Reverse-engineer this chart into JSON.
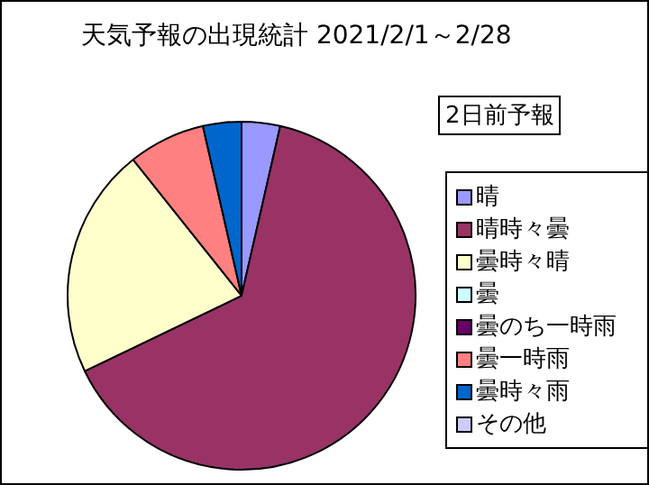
{
  "chart_data": {
    "type": "pie",
    "title": "天気予報の出現統計 2021/2/1～2/28",
    "legend_title": "2日前予報",
    "legend": "right",
    "categories": [
      "晴",
      "晴時々曇",
      "曇時々晴",
      "曇",
      "曇のち一時雨",
      "曇一時雨",
      "曇時々雨",
      "その他"
    ],
    "values": [
      3.57,
      64.29,
      21.43,
      0,
      0,
      7.14,
      3.57,
      0
    ],
    "colors": [
      "#9999ff",
      "#993366",
      "#ffffcc",
      "#ccffff",
      "#660066",
      "#ff8080",
      "#0066cc",
      "#ccccff"
    ]
  }
}
